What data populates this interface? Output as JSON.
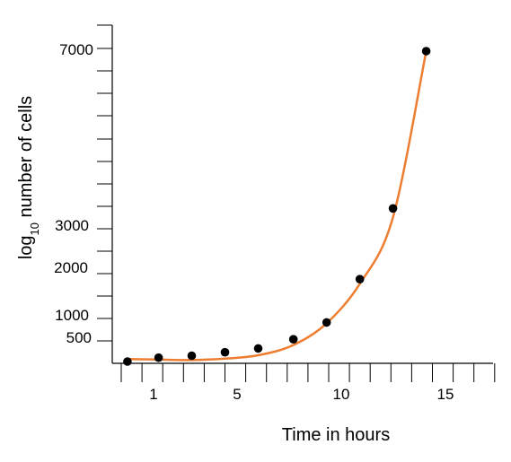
{
  "chart_data": {
    "type": "scatter",
    "title": "",
    "xlabel": "Time in hours",
    "ylabel": {
      "prefix": "log",
      "subscript": "10",
      "suffix": " number of cells"
    },
    "x_tick_labels": [
      "1",
      "5",
      "10",
      "15"
    ],
    "y_tick_labels": [
      "500",
      "1000",
      "2000",
      "3000",
      "7000"
    ],
    "series": [
      {
        "type": "scatter",
        "color": "#000000",
        "points": [
          {
            "x": 0.3,
            "y": 0
          },
          {
            "x": 1.8,
            "y": 80
          },
          {
            "x": 3.4,
            "y": 120
          },
          {
            "x": 5.0,
            "y": 190
          },
          {
            "x": 6.6,
            "y": 270
          },
          {
            "x": 8.3,
            "y": 460
          },
          {
            "x": 9.9,
            "y": 860
          },
          {
            "x": 11.5,
            "y": 1820
          },
          {
            "x": 13.1,
            "y": 3400
          },
          {
            "x": 14.7,
            "y": 6960
          }
        ]
      },
      {
        "type": "line",
        "smooth": true,
        "color": "#ED7D31",
        "points": [
          {
            "x": 0.3,
            "y": 50
          },
          {
            "x": 1.8,
            "y": 40
          },
          {
            "x": 3.4,
            "y": 30
          },
          {
            "x": 5.0,
            "y": 60
          },
          {
            "x": 6.6,
            "y": 130
          },
          {
            "x": 8.3,
            "y": 340
          },
          {
            "x": 9.9,
            "y": 840
          },
          {
            "x": 11.5,
            "y": 1720
          },
          {
            "x": 13.1,
            "y": 3200
          },
          {
            "x": 14.7,
            "y": 6960
          }
        ]
      }
    ],
    "grid": false,
    "legend": "none"
  }
}
